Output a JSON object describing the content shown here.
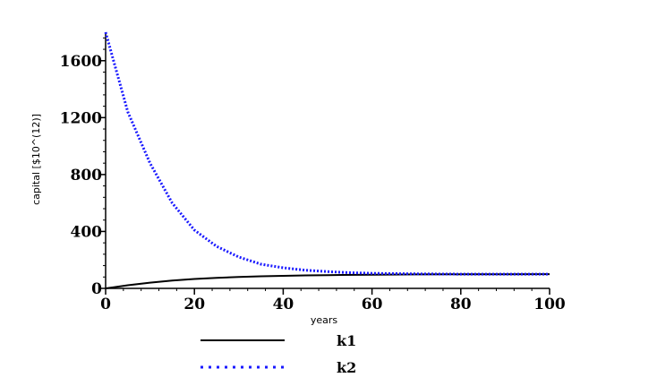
{
  "chart_data": {
    "type": "line",
    "xlabel": "years",
    "ylabel": "capital [$10^(12)]",
    "xlim": [
      0,
      100
    ],
    "ylim": [
      0,
      1800
    ],
    "x_ticks": [
      0,
      20,
      40,
      60,
      80,
      100
    ],
    "y_ticks": [
      0,
      400,
      800,
      1200,
      1600
    ],
    "grid": false,
    "legend_position": "bottom",
    "series": [
      {
        "name": "k1",
        "color": "#000000",
        "style": "solid",
        "x": [
          0,
          5,
          10,
          15,
          20,
          25,
          30,
          35,
          40,
          45,
          50,
          60,
          70,
          80,
          90,
          100
        ],
        "y": [
          0,
          22,
          40,
          55,
          66,
          74,
          80,
          85,
          88,
          91,
          93,
          96,
          98,
          99,
          99,
          100
        ]
      },
      {
        "name": "k2",
        "color": "#1a1aff",
        "style": "dotted",
        "x": [
          0,
          5,
          10,
          15,
          20,
          25,
          30,
          35,
          40,
          45,
          50,
          55,
          60,
          70,
          80,
          90,
          100
        ],
        "y": [
          1800,
          1240,
          880,
          600,
          410,
          295,
          220,
          170,
          145,
          128,
          118,
          110,
          106,
          102,
          100,
          100,
          100
        ]
      }
    ]
  }
}
